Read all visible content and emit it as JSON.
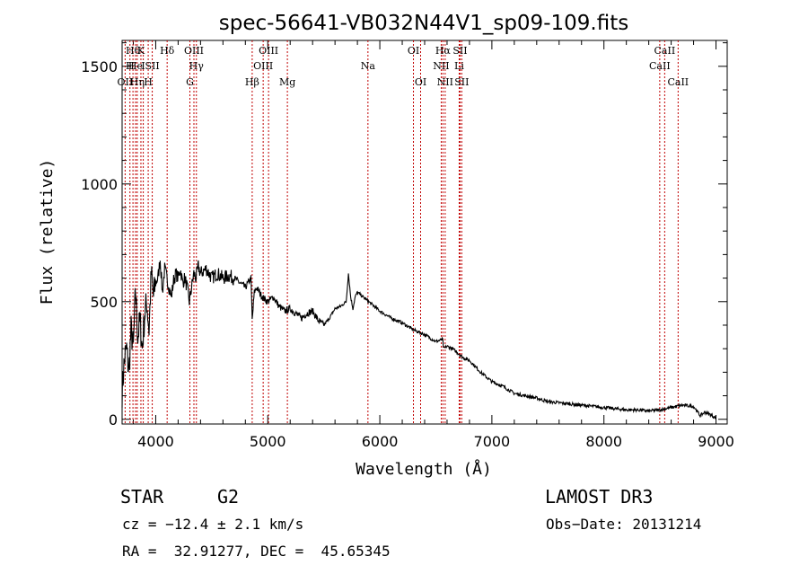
{
  "chart_data": {
    "type": "line",
    "title": "spec-56641-VB032N44V1_sp09-109.fits",
    "xlabel": "Wavelength (Å)",
    "ylabel": "Flux (relative)",
    "xlim": [
      3700,
      9100
    ],
    "ylim": [
      -20,
      1610
    ],
    "xticks": [
      4000,
      5000,
      6000,
      7000,
      8000,
      9000
    ],
    "xtick_labels": [
      "4000",
      "5000",
      "6000",
      "7000",
      "8000",
      "9000"
    ],
    "yticks": [
      0,
      500,
      1000,
      1500
    ],
    "ytick_labels": [
      "0",
      "500",
      "1000",
      "1500"
    ],
    "line_color": "#000000",
    "marker_color": "#c00000",
    "spectrum": {
      "x": [
        3700,
        3720,
        3740,
        3760,
        3780,
        3800,
        3820,
        3840,
        3860,
        3880,
        3900,
        3920,
        3940,
        3960,
        3980,
        4000,
        4020,
        4040,
        4060,
        4080,
        4100,
        4120,
        4140,
        4160,
        4180,
        4200,
        4220,
        4240,
        4260,
        4280,
        4300,
        4320,
        4340,
        4360,
        4380,
        4400,
        4450,
        4500,
        4550,
        4600,
        4650,
        4700,
        4750,
        4800,
        4850,
        4861,
        4880,
        4900,
        4950,
        5000,
        5050,
        5100,
        5150,
        5200,
        5250,
        5300,
        5350,
        5400,
        5450,
        5500,
        5550,
        5600,
        5650,
        5700,
        5720,
        5740,
        5760,
        5780,
        5800,
        5850,
        5900,
        5950,
        6000,
        6100,
        6200,
        6300,
        6400,
        6500,
        6560,
        6570,
        6600,
        6650,
        6700,
        6750,
        6800,
        6900,
        7000,
        7100,
        7200,
        7300,
        7400,
        7500,
        7600,
        7700,
        7800,
        7900,
        8000,
        8100,
        8200,
        8300,
        8400,
        8500,
        8600,
        8700,
        8800,
        8860,
        8900,
        8950,
        9000
      ],
      "y": [
        120,
        250,
        300,
        200,
        380,
        300,
        550,
        350,
        420,
        300,
        440,
        500,
        380,
        620,
        520,
        580,
        600,
        680,
        540,
        640,
        600,
        560,
        520,
        590,
        620,
        600,
        640,
        580,
        600,
        560,
        500,
        560,
        620,
        600,
        650,
        620,
        640,
        600,
        620,
        600,
        610,
        600,
        580,
        560,
        600,
        420,
        540,
        560,
        520,
        500,
        520,
        480,
        460,
        470,
        450,
        430,
        450,
        460,
        420,
        400,
        430,
        470,
        480,
        500,
        620,
        520,
        470,
        520,
        540,
        520,
        500,
        480,
        460,
        430,
        410,
        380,
        360,
        330,
        340,
        300,
        310,
        300,
        280,
        260,
        250,
        200,
        160,
        140,
        110,
        100,
        90,
        75,
        70,
        65,
        60,
        55,
        50,
        45,
        40,
        40,
        35,
        40,
        50,
        60,
        55,
        15,
        30,
        20,
        5
      ]
    },
    "lines": [
      {
        "label": "Hθ",
        "x": 3797,
        "row": 0
      },
      {
        "label": "OII",
        "x": 3727,
        "row": 2
      },
      {
        "label": "H",
        "x": 3770,
        "row": 1
      },
      {
        "label": "He",
        "x": 3820,
        "row": 1
      },
      {
        "label": "Hη",
        "x": 3835,
        "row": 2
      },
      {
        "label": "K",
        "x": 3868,
        "row": 0
      },
      {
        "label": "I",
        "x": 3889,
        "row": 1
      },
      {
        "label": "H",
        "x": 3933,
        "row": 2
      },
      {
        "label": "SII",
        "x": 3969,
        "row": 1
      },
      {
        "label": "Hδ",
        "x": 4102,
        "row": 0
      },
      {
        "label": "OIII",
        "x": 4341,
        "row": 0
      },
      {
        "label": "Hγ",
        "x": 4363,
        "row": 1
      },
      {
        "label": "G",
        "x": 4305,
        "row": 2
      },
      {
        "label": "OIII",
        "x": 5007,
        "row": 0
      },
      {
        "label": "OIII",
        "x": 4959,
        "row": 1
      },
      {
        "label": "Hβ",
        "x": 4861,
        "row": 2
      },
      {
        "label": "Mg",
        "x": 5175,
        "row": 2
      },
      {
        "label": "Na",
        "x": 5894,
        "row": 1
      },
      {
        "label": "OI",
        "x": 6300,
        "row": 0
      },
      {
        "label": "OI",
        "x": 6364,
        "row": 2
      },
      {
        "label": "Hα",
        "x": 6563,
        "row": 0
      },
      {
        "label": "SII",
        "x": 6716,
        "row": 0
      },
      {
        "label": "NII",
        "x": 6548,
        "row": 1
      },
      {
        "label": "Li",
        "x": 6708,
        "row": 1
      },
      {
        "label": "NII",
        "x": 6583,
        "row": 2
      },
      {
        "label": "SII",
        "x": 6731,
        "row": 2
      },
      {
        "label": "CaII",
        "x": 8542,
        "row": 0
      },
      {
        "label": "CaII",
        "x": 8498,
        "row": 1
      },
      {
        "label": "CaII",
        "x": 8662,
        "row": 2
      }
    ]
  },
  "info": {
    "object_class": "STAR",
    "subclass": "G2",
    "survey": "LAMOST DR3",
    "redshift": "cz = −12.4 ± 2.1 km/s",
    "obs_date": "Obs−Date: 20131214",
    "coords": "RA =  32.91277, DEC =  45.65345"
  }
}
